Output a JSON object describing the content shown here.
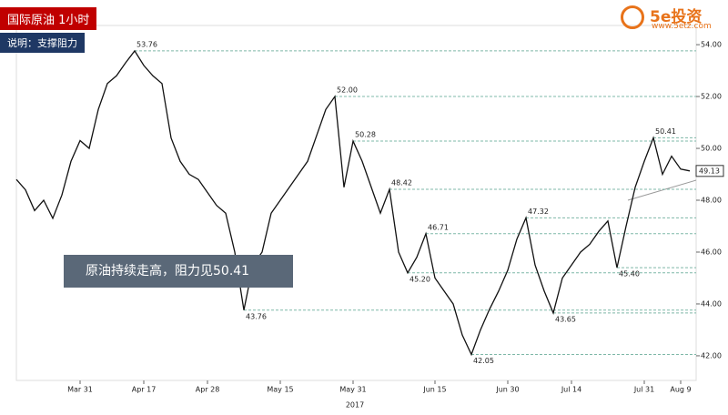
{
  "logo": {
    "name": "5e投资",
    "url": "www.5etz.com"
  },
  "chart_data": {
    "type": "line",
    "title": "国际原油  1小时",
    "subtitle": "说明：支撑阻力",
    "annotation": "原油持续走高，阻力见50.41",
    "xlabel": "2017",
    "color": "#111111",
    "level_color": "#7fb8a8",
    "categories": [
      null,
      null,
      null,
      null,
      null,
      null,
      null,
      "Mar 31",
      null,
      null,
      null,
      null,
      null,
      null,
      "Apr 17",
      null,
      null,
      null,
      null,
      null,
      null,
      "Apr 28",
      null,
      null,
      null,
      null,
      null,
      null,
      null,
      "May 15",
      null,
      null,
      null,
      null,
      null,
      null,
      null,
      "May 31",
      null,
      null,
      null,
      null,
      null,
      null,
      null,
      null,
      "Jun 15",
      null,
      null,
      null,
      null,
      null,
      null,
      null,
      "Jun 30",
      null,
      null,
      null,
      null,
      null,
      null,
      "Jul 14",
      null,
      null,
      null,
      null,
      null,
      null,
      null,
      "Jul 31",
      null,
      null,
      null,
      "Aug 9",
      null
    ],
    "values": [
      48.8,
      48.4,
      47.6,
      48.0,
      47.3,
      48.2,
      49.5,
      50.3,
      50.0,
      51.5,
      52.5,
      52.8,
      53.3,
      53.76,
      53.2,
      52.8,
      52.5,
      50.4,
      49.5,
      49.0,
      48.8,
      48.3,
      47.8,
      47.5,
      46.0,
      43.76,
      45.5,
      46.0,
      47.5,
      48.0,
      48.5,
      49.0,
      49.5,
      50.5,
      51.5,
      52.0,
      48.5,
      50.28,
      49.5,
      48.5,
      47.5,
      48.42,
      46.0,
      45.2,
      45.8,
      46.71,
      45.0,
      44.5,
      44.0,
      42.8,
      42.05,
      43.0,
      43.8,
      44.5,
      45.3,
      46.5,
      47.32,
      45.5,
      44.5,
      43.65,
      45.0,
      45.5,
      46.0,
      46.3,
      46.8,
      47.2,
      45.4,
      47.0,
      48.5,
      49.5,
      50.41,
      49.0,
      49.7,
      49.2,
      49.13
    ],
    "value_labels": [
      null,
      null,
      null,
      null,
      null,
      null,
      null,
      null,
      null,
      null,
      null,
      null,
      null,
      "53.76",
      null,
      null,
      null,
      null,
      null,
      null,
      null,
      null,
      null,
      null,
      null,
      "43.76",
      null,
      null,
      null,
      null,
      null,
      null,
      null,
      null,
      null,
      "52.00",
      null,
      "50.28",
      null,
      null,
      null,
      "48.42",
      null,
      "45.20",
      null,
      "46.71",
      null,
      null,
      null,
      null,
      "42.05",
      null,
      null,
      null,
      null,
      null,
      "47.32",
      null,
      null,
      "43.65",
      null,
      null,
      null,
      null,
      null,
      null,
      "45.40",
      null,
      null,
      null,
      "50.41",
      null,
      null,
      null,
      "49.13"
    ],
    "ylim": [
      41.05,
      54.74
    ],
    "yticks": [
      {
        "value": 42,
        "label": "42.00"
      },
      {
        "value": 44,
        "label": "44.00"
      },
      {
        "value": 46,
        "label": "46.00"
      },
      {
        "value": 48,
        "label": "48.00"
      },
      {
        "value": 50,
        "label": "50.00"
      },
      {
        "value": 52,
        "label": "52.00"
      },
      {
        "value": 54,
        "label": "54.00"
      }
    ]
  }
}
